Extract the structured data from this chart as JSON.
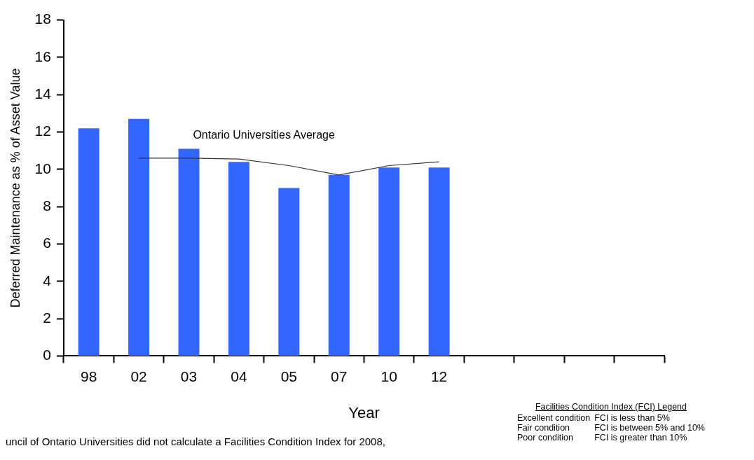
{
  "chart_data": {
    "type": "bar",
    "xlabel": "Year",
    "ylabel": "Deferred Maintenance as % of Asset Value",
    "categories": [
      "98",
      "02",
      "03",
      "04",
      "05",
      "07",
      "10",
      "12",
      null,
      null,
      null,
      null
    ],
    "series": [
      {
        "color": "#3366ff",
        "values": [
          12.2,
          12.7,
          11.1,
          10.4,
          9.0,
          9.7,
          10.1,
          10.1,
          null,
          null,
          null,
          null
        ]
      },
      {
        "type": "line",
        "name": "Ontario Universities Average",
        "color": "#333333",
        "values": [
          null,
          10.6,
          10.6,
          10.55,
          10.2,
          9.7,
          10.2,
          10.4,
          null,
          null,
          null,
          null
        ]
      }
    ],
    "ylim": [
      0,
      18
    ],
    "yticks": [
      0,
      2,
      4,
      6,
      8,
      10,
      12,
      14,
      16,
      18
    ],
    "grid": false,
    "legend": false,
    "marker": "none",
    "annotations": [
      "uncil of Ontario Universities did not calculate a Facilities Condition Index for 2008,",
      "Facilities Condition Index (FCI) Legend",
      "Excellent condition",
      "FCI is less than 5%",
      "Fair condition",
      "FCI is between 5% and 10%",
      "Poor condition",
      "FCI is greater than 10%"
    ]
  }
}
